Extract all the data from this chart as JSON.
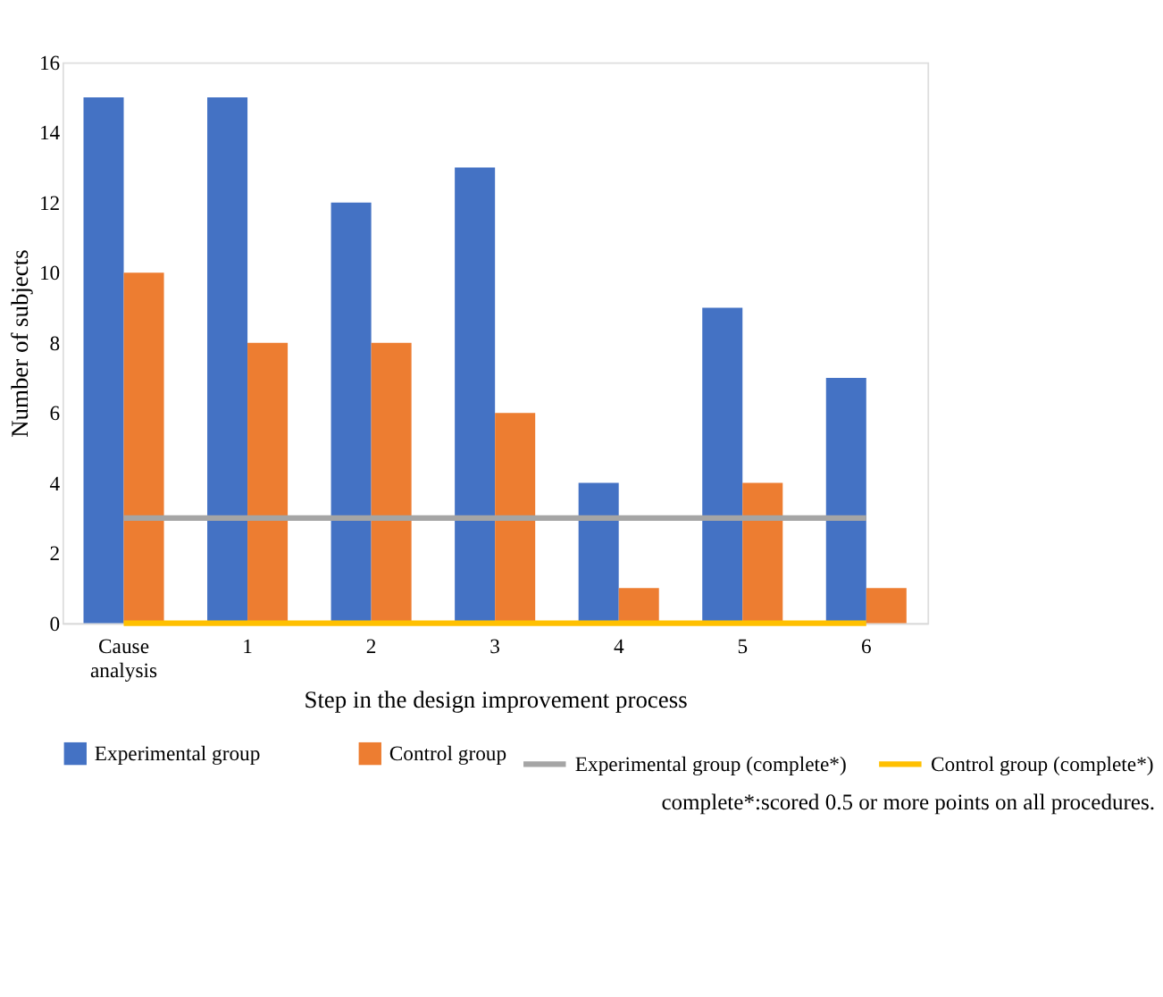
{
  "chart_data": {
    "type": "bar",
    "xlabel": "Step in the design improvement process",
    "ylabel": "Number of subjects",
    "categories": [
      "Cause analysis",
      "1",
      "2",
      "3",
      "4",
      "5",
      "6"
    ],
    "series": [
      {
        "name": "Experimental group",
        "color": "#4472c4",
        "values": [
          15,
          15,
          12,
          13,
          4,
          9,
          7
        ]
      },
      {
        "name": "Control group",
        "color": "#ed7d31",
        "values": [
          10,
          8,
          8,
          6,
          1,
          4,
          1
        ]
      },
      {
        "name": "Experimental group (complete*)",
        "type": "line",
        "color": "#a5a5a5",
        "values": [
          3,
          3,
          3,
          3,
          3,
          3,
          3
        ]
      },
      {
        "name": "Control group (complete*)",
        "type": "line",
        "color": "#ffc000",
        "values": [
          0,
          0,
          0,
          0,
          0,
          0,
          0
        ]
      }
    ],
    "ylim": [
      0,
      16
    ],
    "yticks": [
      0,
      2,
      4,
      6,
      8,
      10,
      12,
      14,
      16
    ],
    "grid": false,
    "legend": "bottom",
    "marker": "none",
    "line_style": "solid",
    "annotations": [
      "complete*:scored 0.5 or more points on all procedures."
    ]
  }
}
